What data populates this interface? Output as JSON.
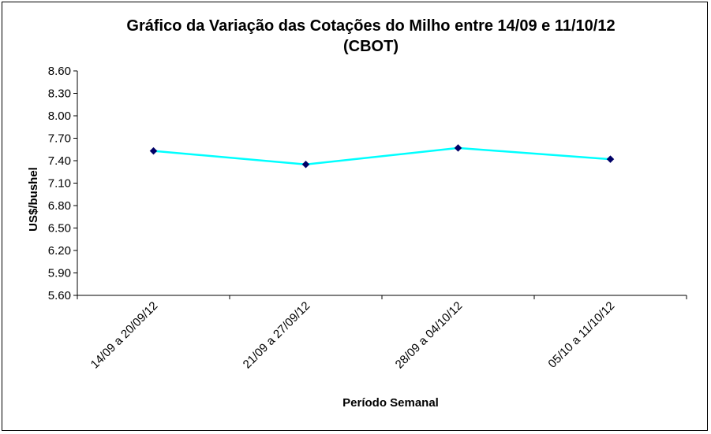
{
  "chart_data": {
    "type": "line",
    "title": "Gráfico da Variação das Cotações do Milho entre 14/09 e 11/10/12",
    "subtitle": "(CBOT)",
    "xlabel": "Período Semanal",
    "ylabel": "US$/bushel",
    "categories": [
      "14/09 a 20/09/12",
      "21/09 a 27/09/12",
      "28/09 a 04/10/12",
      "05/10 a 11/10/12"
    ],
    "series": [
      {
        "values": [
          7.53,
          7.35,
          7.57,
          7.42
        ],
        "color": "#00FFFF",
        "marker_color": "#000066"
      }
    ],
    "ylim": [
      5.6,
      8.6
    ],
    "yticks": [
      "5.60",
      "5.90",
      "6.20",
      "6.50",
      "6.80",
      "7.10",
      "7.40",
      "7.70",
      "8.00",
      "8.30",
      "8.60"
    ],
    "grid": false,
    "legend": "none"
  }
}
